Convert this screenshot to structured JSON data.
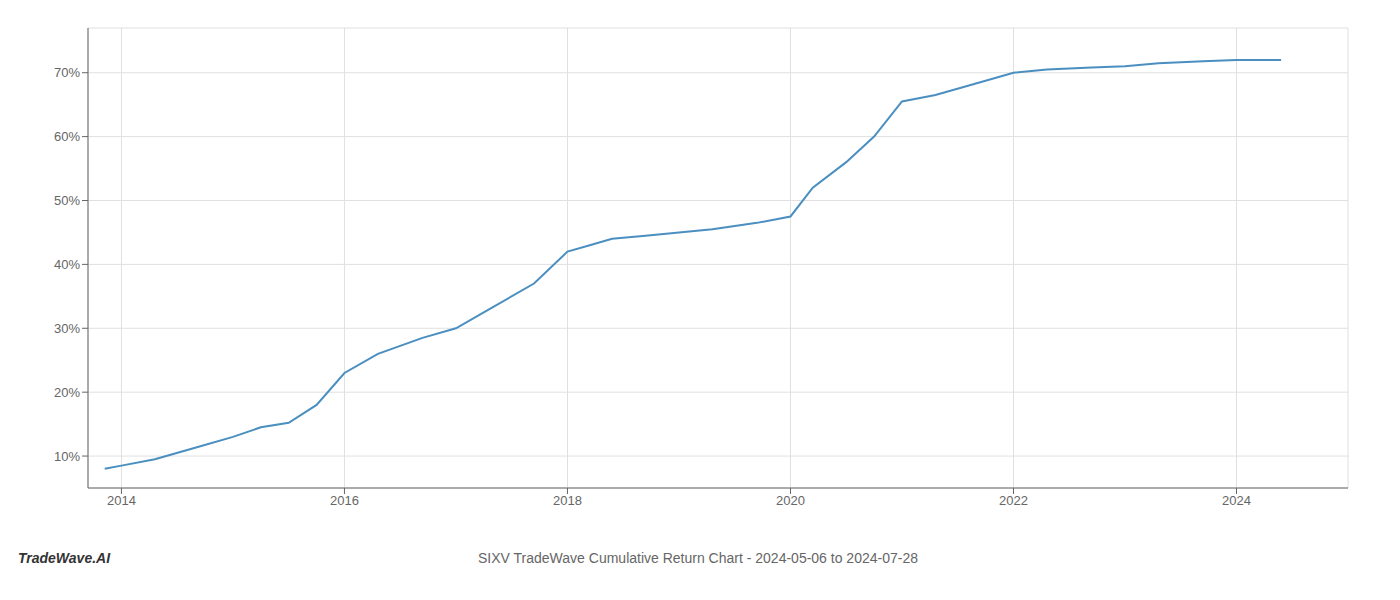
{
  "chart_data": {
    "type": "line",
    "title": "SIXV TradeWave Cumulative Return Chart - 2024-05-06 to 2024-07-28",
    "annotations": [
      "TradeWave.AI"
    ],
    "color": "#4a8fc0",
    "x": [
      2013.85,
      2014.0,
      2014.3,
      2014.7,
      2015.0,
      2015.25,
      2015.5,
      2015.75,
      2016.0,
      2016.3,
      2016.7,
      2017.0,
      2017.3,
      2017.7,
      2018.0,
      2018.2,
      2018.4,
      2018.7,
      2019.0,
      2019.3,
      2019.7,
      2020.0,
      2020.2,
      2020.5,
      2020.75,
      2021.0,
      2021.15,
      2021.3,
      2021.6,
      2022.0,
      2022.3,
      2022.7,
      2023.0,
      2023.3,
      2023.7,
      2024.0,
      2024.4
    ],
    "values": [
      8.0,
      8.5,
      9.5,
      11.5,
      13.0,
      14.5,
      15.2,
      18.0,
      23.0,
      26.0,
      28.5,
      30.0,
      33.0,
      37.0,
      42.0,
      43.0,
      44.0,
      44.5,
      45.0,
      45.5,
      46.5,
      47.5,
      52.0,
      56.0,
      60.0,
      65.5,
      66.0,
      66.5,
      68.0,
      70.0,
      70.5,
      70.8,
      71.0,
      71.5,
      71.8,
      72.0,
      72.0
    ],
    "xlim": [
      2013.7,
      2025.0
    ],
    "ylim": [
      5,
      77
    ],
    "xticks": [
      2014,
      2016,
      2018,
      2020,
      2022,
      2024
    ],
    "yticks": [
      {
        "value": 10,
        "label": "10%"
      },
      {
        "value": 20,
        "label": "20%"
      },
      {
        "value": 30,
        "label": "30%"
      },
      {
        "value": 40,
        "label": "40%"
      },
      {
        "value": 50,
        "label": "50%"
      },
      {
        "value": 60,
        "label": "60%"
      },
      {
        "value": 70,
        "label": "70%"
      }
    ],
    "grid": true
  }
}
